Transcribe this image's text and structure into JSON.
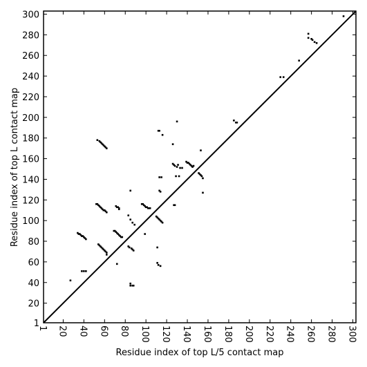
{
  "chart_data": {
    "type": "scatter",
    "x_label": "Residue index of top L/5 contact map",
    "y_label": "Residue index of top L contact map",
    "xlim": [
      1,
      303
    ],
    "ylim": [
      1,
      303
    ],
    "xticks": [
      1,
      20,
      40,
      60,
      80,
      100,
      120,
      140,
      160,
      180,
      200,
      220,
      240,
      260,
      280,
      300
    ],
    "yticks": [
      1,
      20,
      40,
      60,
      80,
      100,
      120,
      140,
      160,
      180,
      200,
      220,
      240,
      260,
      280,
      300
    ],
    "diagonal": true,
    "color": "#000000",
    "x": [
      53,
      55,
      56,
      57,
      58,
      59,
      60,
      61,
      62,
      112,
      113,
      130,
      116,
      52,
      53,
      54,
      55,
      56,
      57,
      58,
      59,
      60,
      61,
      62,
      71,
      72,
      73,
      74,
      74,
      96,
      97,
      98,
      99,
      100,
      101,
      102,
      103,
      104,
      34,
      35,
      36,
      37,
      38,
      39,
      40,
      41,
      42,
      54,
      55,
      56,
      57,
      58,
      59,
      60,
      61,
      62,
      62,
      69,
      70,
      71,
      72,
      73,
      74,
      75,
      76,
      77,
      83,
      84,
      86,
      87,
      88,
      83,
      85,
      87,
      89,
      85,
      99,
      110,
      111,
      112,
      113,
      114,
      115,
      116,
      113,
      114,
      113,
      115,
      111,
      111,
      112,
      114,
      72,
      85,
      85,
      87,
      88,
      27,
      38,
      40,
      42,
      126,
      127,
      128,
      130,
      131,
      133,
      126,
      127,
      128,
      129,
      132,
      135,
      139,
      140,
      141,
      142,
      143,
      144,
      145,
      146,
      153,
      151,
      152,
      153,
      154,
      155,
      155,
      185,
      187,
      188,
      230,
      233,
      248,
      257,
      257,
      260,
      261,
      263,
      265,
      291
    ],
    "y": [
      178,
      177,
      176,
      175,
      174,
      173,
      172,
      171,
      170,
      187,
      187,
      196,
      183,
      116,
      116,
      115,
      114,
      113,
      112,
      111,
      110,
      110,
      109,
      108,
      114,
      113,
      113,
      112,
      111,
      116,
      116,
      115,
      114,
      113,
      113,
      112,
      112,
      112,
      88,
      87,
      87,
      86,
      85,
      85,
      84,
      83,
      82,
      77,
      76,
      75,
      74,
      73,
      72,
      71,
      70,
      69,
      67,
      90,
      90,
      89,
      88,
      87,
      86,
      85,
      84,
      84,
      75,
      74,
      73,
      72,
      71,
      105,
      101,
      98,
      96,
      129,
      87,
      104,
      103,
      102,
      101,
      100,
      99,
      98,
      129,
      128,
      142,
      142,
      74,
      59,
      57,
      56,
      58,
      39,
      37,
      37,
      37,
      42,
      51,
      51,
      51,
      155,
      154,
      153,
      152,
      154,
      151,
      174,
      115,
      115,
      143,
      143,
      151,
      157,
      156,
      156,
      155,
      154,
      153,
      152,
      153,
      168,
      146,
      145,
      144,
      143,
      141,
      127,
      197,
      195,
      195,
      239,
      239,
      255,
      281,
      277,
      276,
      275,
      273,
      272,
      298
    ]
  }
}
